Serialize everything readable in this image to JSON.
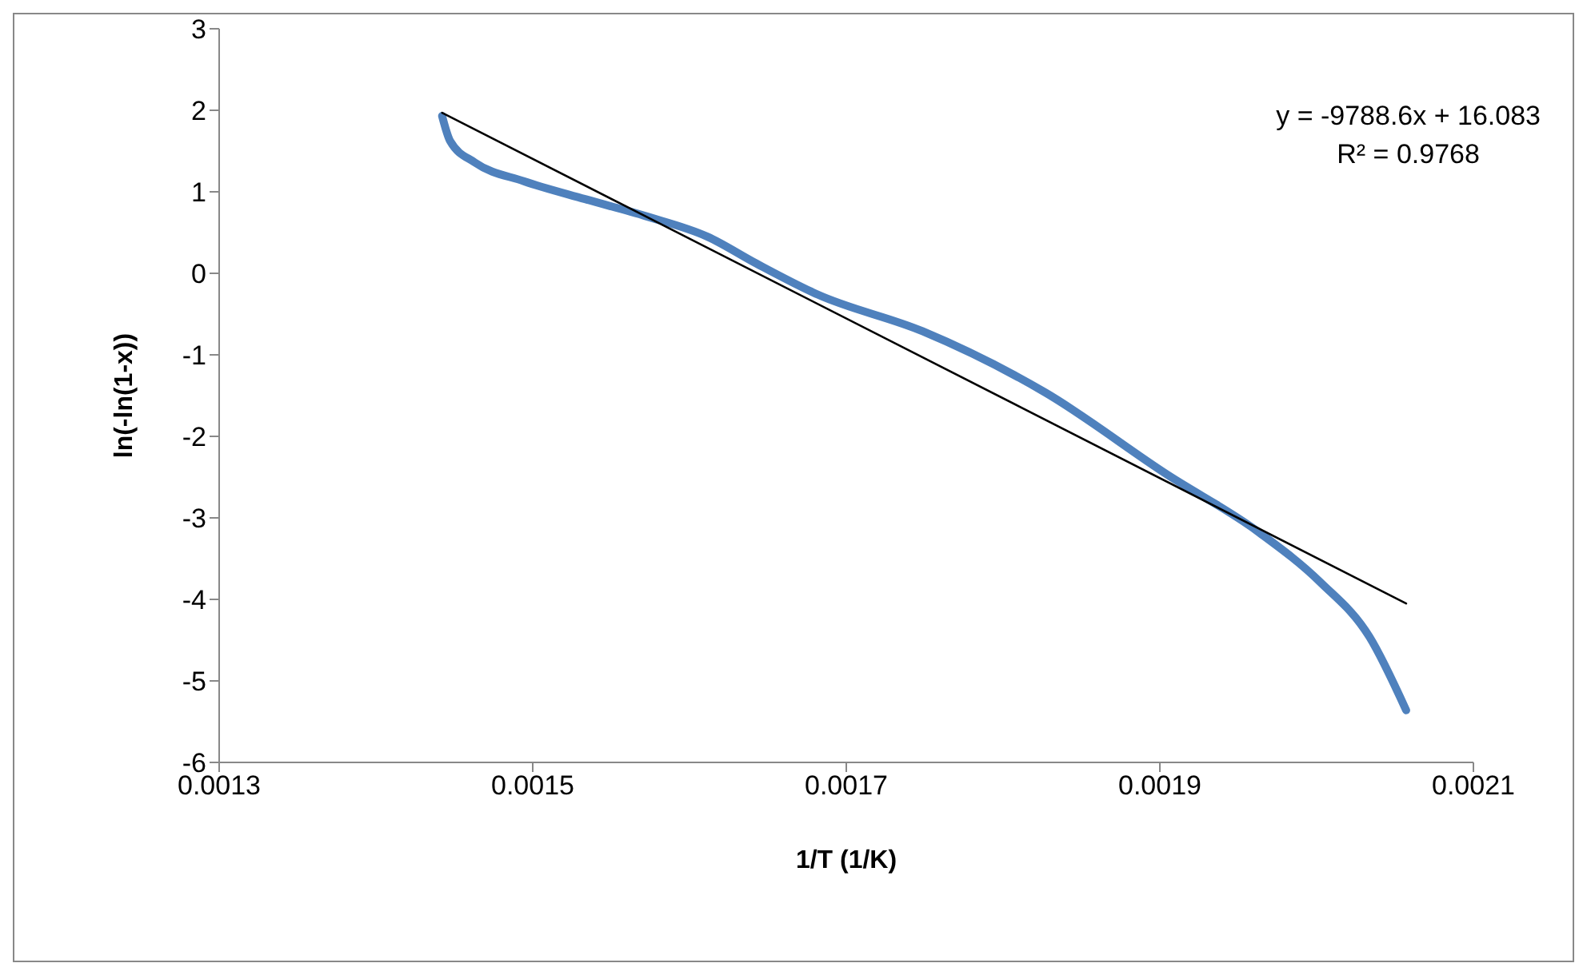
{
  "chart_data": {
    "type": "line",
    "xlabel": "1/T (1/K)",
    "ylabel": "ln(-ln(1-x))",
    "xlim": [
      0.0013,
      0.0021
    ],
    "xticks": [
      0.0013,
      0.0015,
      0.0017,
      0.0019,
      0.0021
    ],
    "ylim": [
      -6,
      3
    ],
    "yticks": [
      -6,
      -5,
      -4,
      -3,
      -2,
      -1,
      0,
      1,
      2,
      3
    ],
    "grid": false,
    "marker": "none",
    "line_style": "solid",
    "annotations": [
      "y = -9788.6x + 16.083",
      "R² = 0.9768"
    ],
    "series": [
      {
        "color": "#4f81bd",
        "x": [
          0.0014422,
          0.0014474,
          0.001463,
          0.0014943,
          0.0015334,
          0.0015724,
          0.0016114,
          0.0016427,
          0.0016817,
          0.0017486,
          0.0018267,
          0.0019048,
          0.0019634,
          0.0020024,
          0.0020337,
          0.0020571
        ],
        "values": [
          1.93,
          1.62,
          1.36,
          1.13,
          0.91,
          0.7,
          0.45,
          0.12,
          -0.26,
          -0.71,
          -1.46,
          -2.47,
          -3.18,
          -3.79,
          -4.46,
          -5.36
        ]
      },
      {
        "color": "#000000",
        "x": [
          0.0014422,
          0.0020571
        ],
        "values": [
          1.97,
          -4.05
        ]
      }
    ]
  }
}
